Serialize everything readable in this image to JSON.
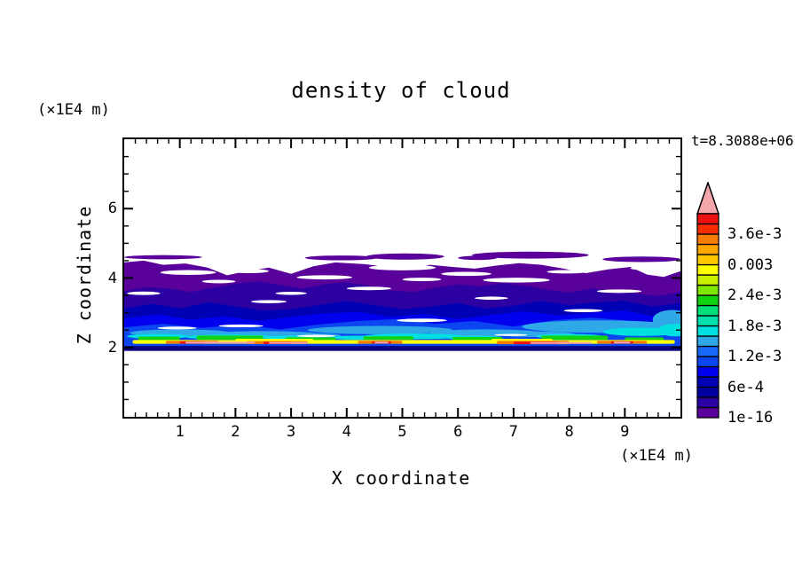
{
  "title": "density of cloud",
  "time_label": "t=8.3088e+06",
  "axes": {
    "x": {
      "label": "X coordinate",
      "unit": "(×1E4 m)",
      "min": 0,
      "max": 10,
      "major_ticks": [
        "1",
        "2",
        "3",
        "4",
        "5",
        "6",
        "7",
        "8",
        "9"
      ],
      "minor_step": 0.2
    },
    "y": {
      "label": "Z coordinate",
      "unit": "(×1E4 m)",
      "min": 0,
      "max": 8,
      "major_ticks": [
        "2",
        "4",
        "6"
      ],
      "minor_step": 0.5
    }
  },
  "colorbar": {
    "segment_colors_bottom_to_top": [
      "#5a009b",
      "#2d00a2",
      "#0000a0",
      "#0000b4",
      "#0000ee",
      "#0c46f0",
      "#1668f8",
      "#2fa8e8",
      "#00e0e0",
      "#00e0ac",
      "#00df78",
      "#11d311",
      "#7fe600",
      "#c8f000",
      "#ffff00",
      "#ffc800",
      "#ffa500",
      "#fd7d00",
      "#fb2d00",
      "#ee1111"
    ],
    "overflow_color": "#f4a6aa",
    "labels_bottom_to_top": [
      "1e-16",
      "6e-4",
      "1.2e-3",
      "1.8e-3",
      "2.4e-3",
      "0.003",
      "3.6e-3"
    ],
    "label_every_n_boundaries": 3
  },
  "chart_data": {
    "type": "heatmap",
    "title": "density of cloud",
    "xlabel": "X coordinate (×1E4 m)",
    "ylabel": "Z coordinate (×1E4 m)",
    "xlim": [
      0,
      10
    ],
    "ylim": [
      0,
      8
    ],
    "time": "t=8.3088e+06",
    "value_levels_bottom_to_top": [
      "1e-16",
      "2e-4",
      "4e-4",
      "6e-4",
      "8e-4",
      "1e-3",
      "1.2e-3",
      "1.4e-3",
      "1.6e-3",
      "1.8e-3",
      "2e-3",
      "2.2e-3",
      "2.4e-3",
      "2.6e-3",
      "2.8e-3",
      "0.003",
      "3.2e-3",
      "3.4e-3",
      "3.6e-3",
      "3.8e-3",
      "4e-3 (pink=overflow)"
    ],
    "note": "cloud layer between z≈2 and z≈4.7 (×1E4 m); highest density (yellow-red-pink) in thin sheet at z≈2.1-2.2; density decreases upward through blue then purple to cloud top",
    "bands": [
      {
        "name": "purple",
        "color": "#5a009b",
        "min_value": "1e-16",
        "base": 1.93,
        "top_edge": [
          [
            0,
            4.45
          ],
          [
            0.35,
            4.5
          ],
          [
            0.7,
            4.38
          ],
          [
            1.1,
            4.42
          ],
          [
            1.5,
            4.3
          ],
          [
            1.85,
            4.08
          ],
          [
            2.2,
            4.2
          ],
          [
            2.6,
            4.3
          ],
          [
            3.0,
            4.12
          ],
          [
            3.4,
            4.34
          ],
          [
            3.8,
            4.45
          ],
          [
            4.3,
            4.4
          ],
          [
            4.7,
            4.33
          ],
          [
            5.1,
            4.28
          ],
          [
            5.5,
            4.38
          ],
          [
            5.9,
            4.32
          ],
          [
            6.3,
            4.27
          ],
          [
            6.7,
            4.36
          ],
          [
            7.1,
            4.43
          ],
          [
            7.5,
            4.38
          ],
          [
            7.9,
            4.27
          ],
          [
            8.3,
            4.14
          ],
          [
            8.7,
            4.25
          ],
          [
            9.1,
            4.32
          ],
          [
            9.4,
            4.1
          ],
          [
            9.7,
            4.03
          ],
          [
            10,
            4.2
          ]
        ]
      },
      {
        "name": "violet",
        "color": "#2d00a2",
        "min_value": "2e-4",
        "base": 1.93,
        "top_edge": [
          [
            0,
            3.62
          ],
          [
            0.4,
            3.74
          ],
          [
            0.8,
            3.7
          ],
          [
            1.2,
            3.6
          ],
          [
            1.6,
            3.72
          ],
          [
            2.0,
            3.84
          ],
          [
            2.4,
            3.9
          ],
          [
            2.8,
            3.8
          ],
          [
            3.2,
            3.7
          ],
          [
            3.6,
            3.82
          ],
          [
            4.0,
            3.88
          ],
          [
            4.4,
            3.78
          ],
          [
            4.8,
            3.64
          ],
          [
            5.2,
            3.6
          ],
          [
            5.6,
            3.72
          ],
          [
            6.0,
            3.82
          ],
          [
            6.4,
            3.76
          ],
          [
            6.8,
            3.86
          ],
          [
            7.2,
            3.78
          ],
          [
            7.6,
            3.66
          ],
          [
            8.0,
            3.58
          ],
          [
            8.4,
            3.7
          ],
          [
            8.8,
            3.64
          ],
          [
            9.2,
            3.56
          ],
          [
            9.6,
            3.48
          ],
          [
            10,
            3.6
          ]
        ]
      },
      {
        "name": "navy",
        "color": "#0000b4",
        "min_value": "4e-4",
        "base": 1.93,
        "top_edge": [
          [
            0,
            3.12
          ],
          [
            0.5,
            3.26
          ],
          [
            1.0,
            3.12
          ],
          [
            1.5,
            3.3
          ],
          [
            2.0,
            3.18
          ],
          [
            2.5,
            3.06
          ],
          [
            3.0,
            3.1
          ],
          [
            3.5,
            3.22
          ],
          [
            4.0,
            3.34
          ],
          [
            4.5,
            3.22
          ],
          [
            5.0,
            3.1
          ],
          [
            5.5,
            3.18
          ],
          [
            6.0,
            3.28
          ],
          [
            6.5,
            3.12
          ],
          [
            7.0,
            3.2
          ],
          [
            7.5,
            3.34
          ],
          [
            8.0,
            3.22
          ],
          [
            8.5,
            3.3
          ],
          [
            9.0,
            3.34
          ],
          [
            9.5,
            3.18
          ],
          [
            10,
            3.28
          ]
        ]
      },
      {
        "name": "deep-blue",
        "color": "#0000ee",
        "min_value": "8e-4",
        "base": 1.93,
        "top_edge": [
          [
            0,
            2.84
          ],
          [
            0.6,
            2.95
          ],
          [
            1.2,
            2.8
          ],
          [
            1.8,
            2.9
          ],
          [
            2.4,
            2.76
          ],
          [
            3.0,
            2.88
          ],
          [
            3.6,
            2.98
          ],
          [
            4.2,
            3.02
          ],
          [
            4.8,
            2.88
          ],
          [
            5.4,
            2.96
          ],
          [
            6.0,
            2.82
          ],
          [
            6.6,
            2.94
          ],
          [
            7.2,
            3.04
          ],
          [
            7.8,
            2.92
          ],
          [
            8.4,
            3.0
          ],
          [
            9.0,
            3.06
          ],
          [
            9.5,
            2.9
          ],
          [
            10,
            2.96
          ]
        ]
      },
      {
        "name": "blue",
        "color": "#0c46f0",
        "min_value": "1e-3",
        "base": 1.93,
        "top_edge": [
          [
            0,
            2.58
          ],
          [
            0.7,
            2.68
          ],
          [
            1.4,
            2.56
          ],
          [
            2.1,
            2.66
          ],
          [
            2.8,
            2.52
          ],
          [
            3.5,
            2.66
          ],
          [
            4.2,
            2.76
          ],
          [
            4.9,
            2.82
          ],
          [
            5.6,
            2.68
          ],
          [
            6.3,
            2.76
          ],
          [
            7.0,
            2.6
          ],
          [
            7.7,
            2.78
          ],
          [
            8.4,
            2.86
          ],
          [
            9.0,
            2.78
          ],
          [
            9.5,
            2.66
          ],
          [
            10,
            2.72
          ]
        ]
      }
    ],
    "top_patches": {
      "color": "#5a009b",
      "min_value": "1e-16",
      "blobs": [
        [
          3.9,
          4.58,
          0.65,
          0.07
        ],
        [
          5.05,
          4.62,
          0.7,
          0.09
        ],
        [
          7.3,
          4.66,
          1.05,
          0.1
        ],
        [
          9.3,
          4.54,
          0.7,
          0.08
        ],
        [
          6.35,
          4.58,
          0.35,
          0.06
        ],
        [
          0.7,
          4.6,
          0.7,
          0.06
        ]
      ]
    },
    "blob_layers": [
      {
        "name": "sky-blue",
        "color": "#2fa8e8",
        "min_value": "1.4e-3",
        "blobs": [
          [
            1.0,
            2.42,
            0.9,
            0.1
          ],
          [
            2.5,
            2.38,
            1.0,
            0.09
          ],
          [
            4.6,
            2.5,
            1.3,
            0.12
          ],
          [
            6.5,
            2.42,
            1.0,
            0.1
          ],
          [
            8.55,
            2.6,
            1.4,
            0.18
          ],
          [
            9.85,
            2.8,
            0.35,
            0.28
          ],
          [
            3.3,
            2.34,
            0.6,
            0.07
          ],
          [
            7.4,
            2.38,
            0.7,
            0.08
          ]
        ]
      },
      {
        "name": "cyan",
        "color": "#00e0e0",
        "min_value": "1.6e-3",
        "blobs": [
          [
            0.6,
            2.32,
            0.55,
            0.07
          ],
          [
            1.9,
            2.3,
            0.8,
            0.07
          ],
          [
            3.0,
            2.28,
            0.5,
            0.06
          ],
          [
            5.2,
            2.32,
            0.9,
            0.08
          ],
          [
            6.3,
            2.28,
            0.5,
            0.06
          ],
          [
            8.0,
            2.32,
            0.6,
            0.07
          ],
          [
            9.3,
            2.45,
            0.7,
            0.12
          ],
          [
            4.2,
            2.28,
            0.5,
            0.06
          ],
          [
            9.9,
            2.5,
            0.3,
            0.18
          ]
        ]
      }
    ],
    "white_gaps": [
      [
        0.35,
        3.56,
        0.3,
        0.05
      ],
      [
        1.15,
        4.16,
        0.5,
        0.07
      ],
      [
        2.25,
        4.2,
        0.35,
        0.06
      ],
      [
        3.0,
        3.56,
        0.28,
        0.045
      ],
      [
        3.6,
        4.02,
        0.5,
        0.06
      ],
      [
        5.0,
        4.3,
        0.6,
        0.08
      ],
      [
        5.35,
        3.96,
        0.35,
        0.05
      ],
      [
        6.15,
        4.12,
        0.45,
        0.06
      ],
      [
        7.05,
        3.94,
        0.6,
        0.07
      ],
      [
        7.95,
        4.18,
        0.35,
        0.05
      ],
      [
        8.9,
        3.62,
        0.4,
        0.05
      ],
      [
        9.5,
        4.28,
        0.4,
        0.06
      ],
      [
        4.4,
        3.7,
        0.4,
        0.05
      ],
      [
        2.6,
        3.32,
        0.32,
        0.045
      ],
      [
        6.6,
        3.42,
        0.3,
        0.045
      ],
      [
        8.25,
        3.06,
        0.35,
        0.045
      ],
      [
        0.95,
        2.56,
        0.35,
        0.04
      ],
      [
        2.1,
        2.62,
        0.4,
        0.04
      ],
      [
        5.35,
        2.78,
        0.45,
        0.05
      ],
      [
        3.45,
        2.33,
        0.35,
        0.035
      ],
      [
        6.95,
        2.36,
        0.3,
        0.03
      ],
      [
        1.7,
        3.9,
        0.3,
        0.05
      ]
    ],
    "streak_layers": [
      {
        "name": "green",
        "color": "#11d311",
        "min_value": "2.2e-3",
        "segments": [
          [
            0.25,
            1.0,
            2.26,
            0.05
          ],
          [
            1.3,
            2.5,
            2.28,
            0.06
          ],
          [
            2.9,
            3.8,
            2.24,
            0.05
          ],
          [
            4.3,
            5.2,
            2.27,
            0.05
          ],
          [
            5.9,
            6.8,
            2.25,
            0.05
          ],
          [
            7.5,
            8.7,
            2.28,
            0.06
          ],
          [
            9.0,
            9.7,
            2.24,
            0.05
          ]
        ]
      },
      {
        "name": "yellow",
        "color": "#ffff00",
        "min_value": "2.8e-3",
        "segments": [
          [
            0.15,
            9.9,
            2.16,
            0.055
          ],
          [
            2.0,
            3.4,
            2.21,
            0.04
          ],
          [
            6.6,
            7.7,
            2.21,
            0.04
          ]
        ]
      },
      {
        "name": "orange",
        "color": "#fd7d00",
        "min_value": "3.4e-3",
        "segments": [
          [
            0.75,
            1.7,
            2.15,
            0.042
          ],
          [
            2.2,
            3.3,
            2.14,
            0.042
          ],
          [
            4.2,
            5.0,
            2.15,
            0.042
          ],
          [
            6.7,
            8.0,
            2.14,
            0.047
          ],
          [
            8.5,
            9.4,
            2.15,
            0.042
          ]
        ]
      },
      {
        "name": "red",
        "color": "#ee1111",
        "min_value": "3.8e-3",
        "segments": [
          [
            1.0,
            1.45,
            2.14,
            0.034
          ],
          [
            2.5,
            3.0,
            2.13,
            0.032
          ],
          [
            4.45,
            4.8,
            2.14,
            0.032
          ],
          [
            7.0,
            7.8,
            2.13,
            0.035
          ],
          [
            8.75,
            9.15,
            2.14,
            0.032
          ]
        ]
      },
      {
        "name": "pink-overflow",
        "color": "#f4a6aa",
        "min_value": ">4e-3",
        "segments": [
          [
            1.1,
            2.35,
            2.14,
            0.027
          ],
          [
            2.6,
            3.3,
            2.13,
            0.025
          ],
          [
            4.5,
            4.75,
            2.14,
            0.025
          ],
          [
            7.3,
            8.4,
            2.13,
            0.027
          ],
          [
            8.8,
            9.1,
            2.14,
            0.025
          ]
        ]
      }
    ],
    "surface_line": {
      "color": "#0a0080",
      "z_top": 2.04,
      "z_bottom": 1.9,
      "x_range": [
        0,
        10
      ]
    }
  }
}
